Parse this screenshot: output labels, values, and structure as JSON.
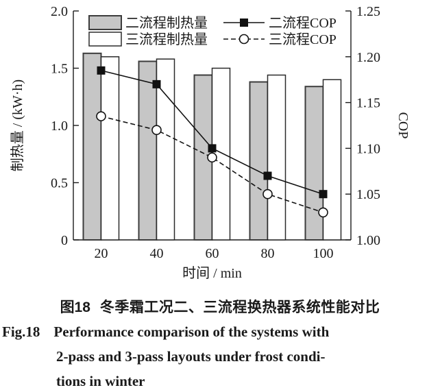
{
  "caption": {
    "cn_label": "图18",
    "cn_text": "冬季霜工况二、三流程换热器系统性能对比",
    "en_label": "Fig.18",
    "en_line1": "Performance comparison of the systems with",
    "en_line2": "2-pass and 3-pass layouts under frost condi-",
    "en_line3": "tions in winter"
  },
  "chart_data": {
    "type": "bar",
    "combo": "grouped bars (left axis) + marker lines (right axis)",
    "categories": [
      "20",
      "40",
      "60",
      "80",
      "100"
    ],
    "xlabel": "时间 / min",
    "left_axis": {
      "label": "制热量 / (kW·h)",
      "range": [
        0,
        2.0
      ],
      "ticks": [
        "0",
        "0.5",
        "1.0",
        "1.5",
        "2.0"
      ],
      "tick_values": [
        0,
        0.5,
        1.0,
        1.5,
        2.0
      ]
    },
    "right_axis": {
      "label": "COP",
      "range": [
        1.0,
        1.25
      ],
      "ticks": [
        "1.00",
        "1.05",
        "1.10",
        "1.15",
        "1.20",
        "1.25"
      ],
      "tick_values": [
        1.0,
        1.05,
        1.1,
        1.15,
        1.2,
        1.25
      ]
    },
    "bar_series": [
      {
        "name": "二流程制热量",
        "axis": "left",
        "fill": "#c6c6c6",
        "stroke": "#3c3c3c",
        "values": [
          1.63,
          1.56,
          1.44,
          1.38,
          1.34
        ]
      },
      {
        "name": "三流程制热量",
        "axis": "left",
        "fill": "#ffffff",
        "stroke": "#2a2a2a",
        "values": [
          1.6,
          1.58,
          1.5,
          1.44,
          1.4
        ]
      }
    ],
    "line_series": [
      {
        "name": "二流程COP",
        "axis": "right",
        "style": "solid",
        "marker": "filled-square",
        "color": "#111111",
        "values": [
          1.185,
          1.17,
          1.1,
          1.07,
          1.05
        ]
      },
      {
        "name": "三流程COP",
        "axis": "right",
        "style": "dashed",
        "marker": "open-circle",
        "color": "#111111",
        "values": [
          1.135,
          1.12,
          1.09,
          1.05,
          1.03
        ]
      }
    ],
    "legend_position": "top-inside",
    "grid": false
  },
  "colors": {
    "background": "#ffffff",
    "text": "#1a1a1a",
    "bar_gray": "#c6c6c6",
    "bar_white": "#ffffff",
    "line_black": "#111111"
  }
}
